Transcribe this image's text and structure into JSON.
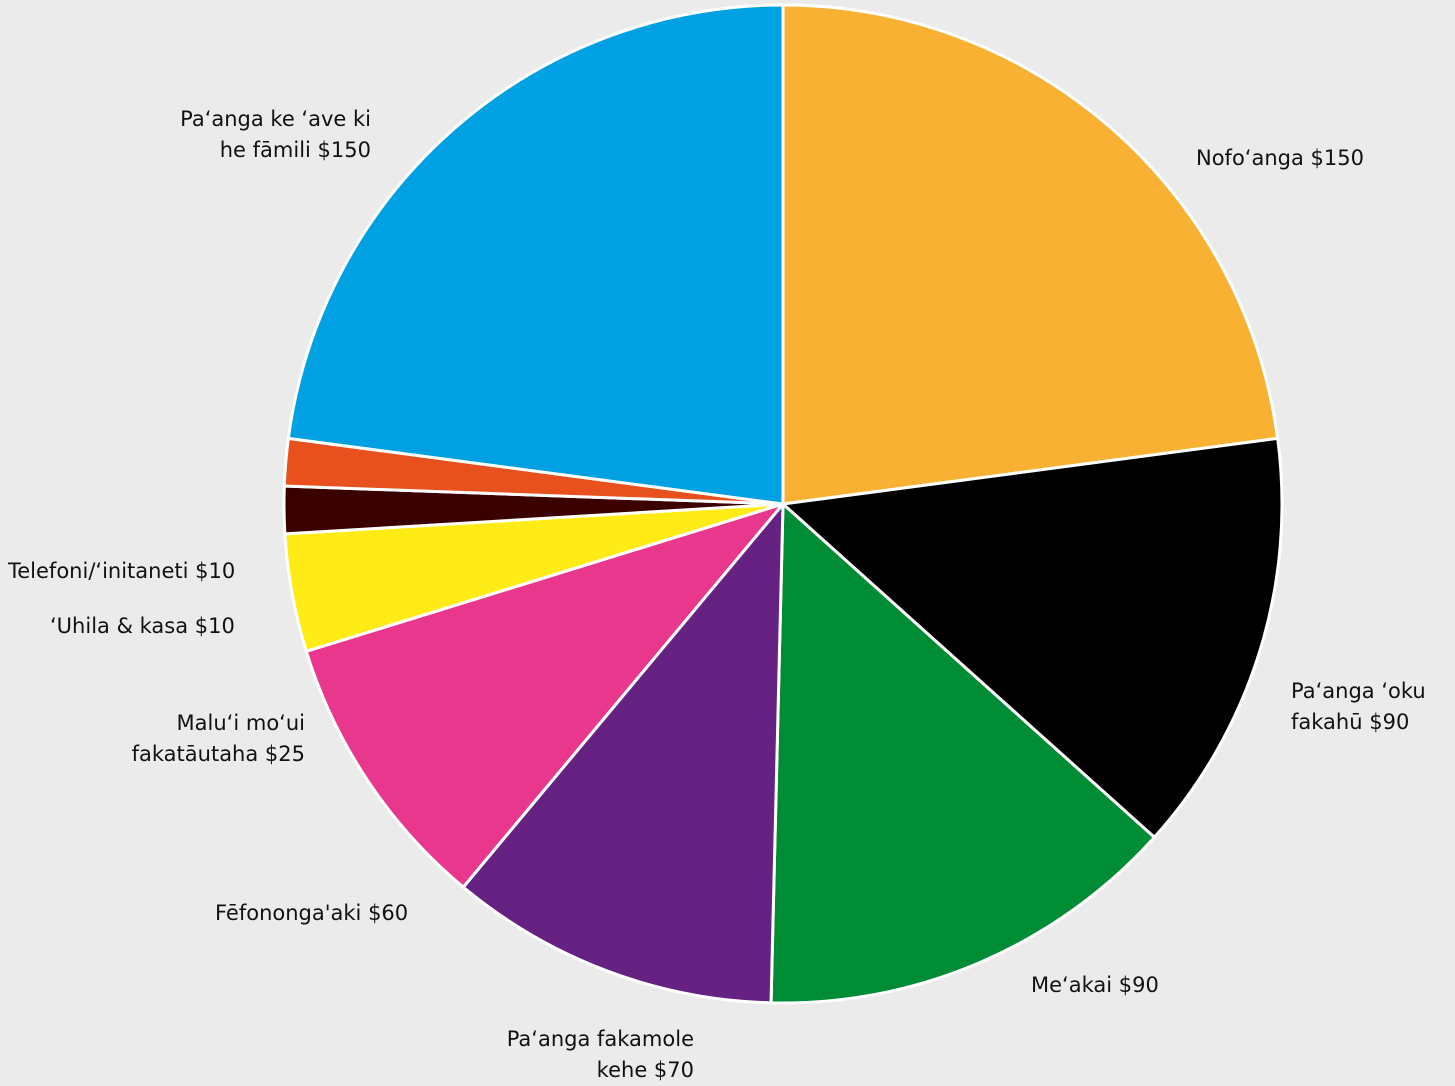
{
  "chart_data": {
    "type": "pie",
    "start": "12 o'clock",
    "direction": "clockwise",
    "slices": [
      {
        "label_lines": [
          "Nofoʻanga $150"
        ],
        "value": 150,
        "color": "#F8B133"
      },
      {
        "label_lines": [
          "Paʻanga ʻoku",
          "fakahū $90"
        ],
        "value": 90,
        "color": "#000000"
      },
      {
        "label_lines": [
          "Meʻakai $90"
        ],
        "value": 90,
        "color": "#008C35"
      },
      {
        "label_lines": [
          "Paʻanga fakamole",
          "kehe $70"
        ],
        "value": 70,
        "color": "#652282"
      },
      {
        "label_lines": [
          "Fēfononga'aki $60"
        ],
        "value": 60,
        "color": "#E8378D"
      },
      {
        "label_lines": [
          "Maluʻi moʻui",
          "fakatāutaha $25"
        ],
        "value": 25,
        "color": "#FFEC17"
      },
      {
        "label_lines": [
          "ʻUhila & kasa $10"
        ],
        "value": 10,
        "color": "#3B0000"
      },
      {
        "label_lines": [
          "Telefoni/ʻinitaneti $10"
        ],
        "value": 10,
        "color": "#E8501D"
      },
      {
        "label_lines": [
          "Paʻanga ke ʻave ki",
          "he fāmili $150"
        ],
        "value": 150,
        "color": "#00A1E2"
      }
    ]
  }
}
